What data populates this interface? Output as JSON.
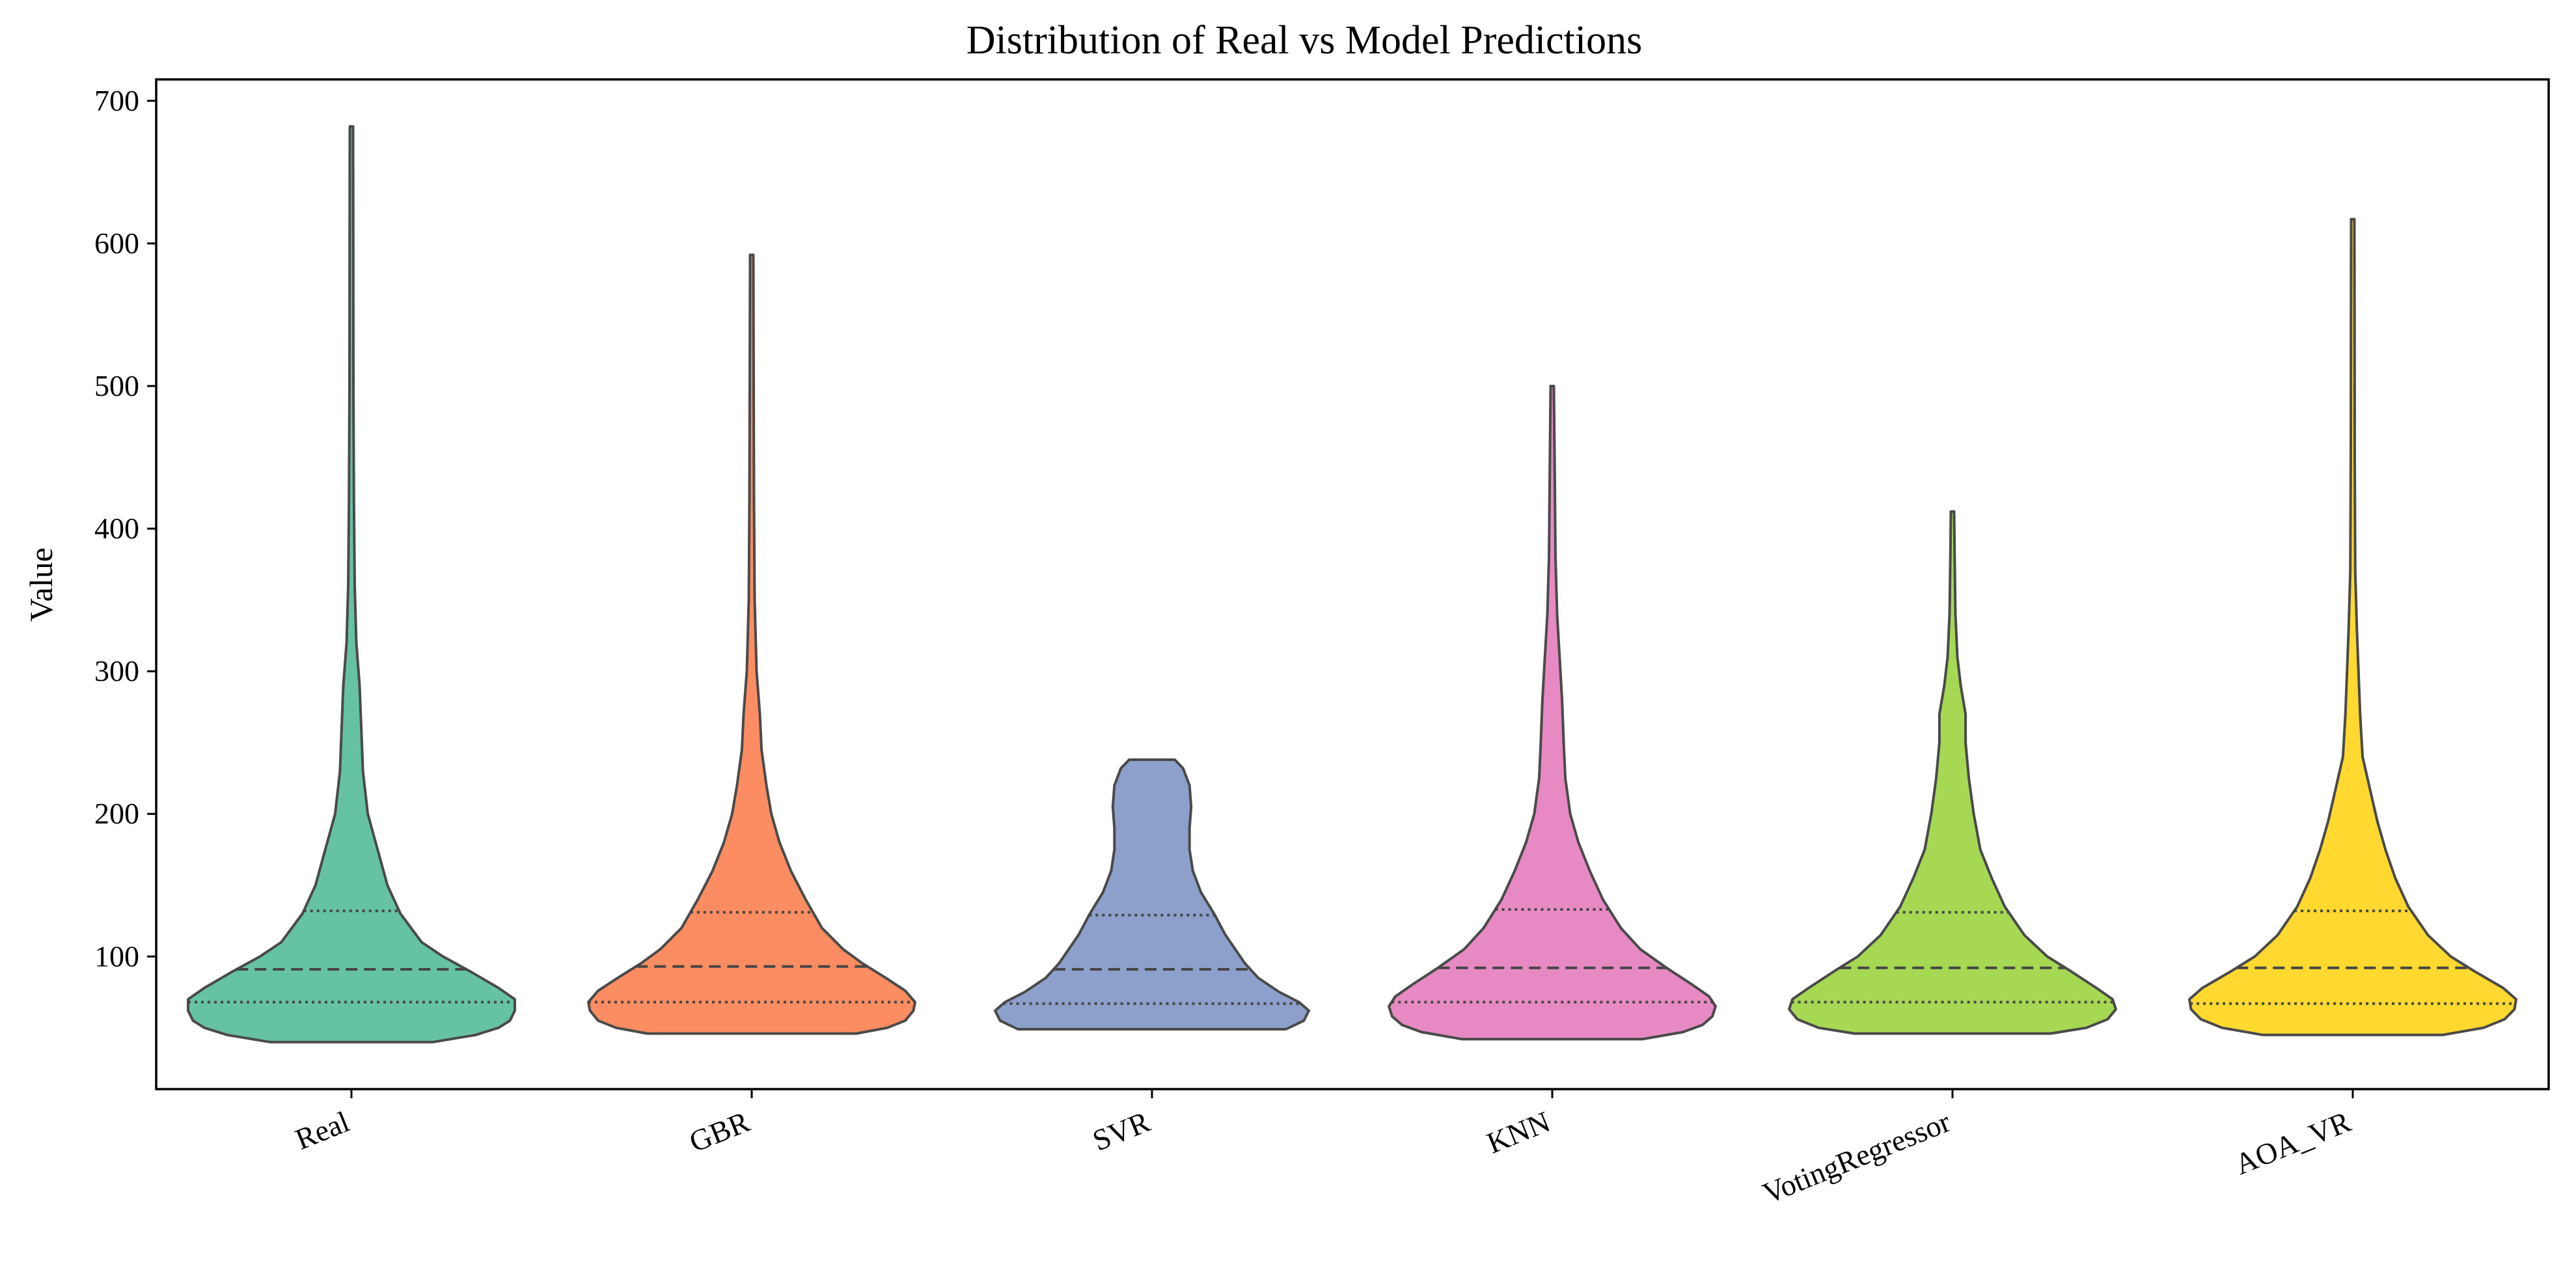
{
  "chart_data": {
    "type": "violin",
    "title": "Distribution of Real vs Model Predictions",
    "xlabel": "",
    "ylabel": "Value",
    "ylim": [
      7,
      715
    ],
    "yticks": [
      100,
      200,
      300,
      400,
      500,
      600,
      700
    ],
    "grid": false,
    "inner": "quartile",
    "categories": [
      "Real",
      "GBR",
      "SVR",
      "KNN",
      "VotingRegressor",
      "AOA_VR"
    ],
    "series": [
      {
        "name": "Real",
        "color": "#66c2a5",
        "min": 40,
        "q1": 68,
        "median": 91,
        "q3": 132,
        "max": 682,
        "density": [
          [
            40,
            0.5
          ],
          [
            45,
            0.76
          ],
          [
            50,
            0.9
          ],
          [
            55,
            0.97
          ],
          [
            62,
            1.0
          ],
          [
            70,
            1.0
          ],
          [
            78,
            0.9
          ],
          [
            90,
            0.72
          ],
          [
            100,
            0.56
          ],
          [
            110,
            0.43
          ],
          [
            130,
            0.3
          ],
          [
            150,
            0.22
          ],
          [
            175,
            0.16
          ],
          [
            200,
            0.1
          ],
          [
            230,
            0.07
          ],
          [
            260,
            0.06
          ],
          [
            290,
            0.05
          ],
          [
            320,
            0.03
          ],
          [
            360,
            0.02
          ],
          [
            420,
            0.015
          ],
          [
            500,
            0.012
          ],
          [
            600,
            0.011
          ],
          [
            682,
            0.01
          ]
        ]
      },
      {
        "name": "GBR",
        "color": "#fc8d62",
        "min": 46,
        "q1": 68,
        "median": 93,
        "q3": 131,
        "max": 592,
        "density": [
          [
            46,
            0.64
          ],
          [
            50,
            0.83
          ],
          [
            55,
            0.94
          ],
          [
            62,
            0.99
          ],
          [
            68,
            1.0
          ],
          [
            76,
            0.94
          ],
          [
            85,
            0.82
          ],
          [
            95,
            0.68
          ],
          [
            105,
            0.56
          ],
          [
            120,
            0.43
          ],
          [
            140,
            0.33
          ],
          [
            160,
            0.24
          ],
          [
            180,
            0.17
          ],
          [
            200,
            0.12
          ],
          [
            220,
            0.09
          ],
          [
            245,
            0.06
          ],
          [
            270,
            0.05
          ],
          [
            300,
            0.03
          ],
          [
            350,
            0.018
          ],
          [
            420,
            0.014
          ],
          [
            500,
            0.012
          ],
          [
            592,
            0.01
          ]
        ]
      },
      {
        "name": "SVR",
        "color": "#8da0cb",
        "min": 49,
        "q1": 67,
        "median": 91,
        "q3": 129,
        "max": 238,
        "density": [
          [
            49,
            0.82
          ],
          [
            55,
            0.93
          ],
          [
            62,
            0.96
          ],
          [
            68,
            0.9
          ],
          [
            75,
            0.78
          ],
          [
            85,
            0.65
          ],
          [
            95,
            0.57
          ],
          [
            105,
            0.51
          ],
          [
            115,
            0.45
          ],
          [
            130,
            0.38
          ],
          [
            145,
            0.3
          ],
          [
            160,
            0.25
          ],
          [
            175,
            0.23
          ],
          [
            190,
            0.23
          ],
          [
            205,
            0.24
          ],
          [
            220,
            0.23
          ],
          [
            232,
            0.19
          ],
          [
            238,
            0.14
          ]
        ]
      },
      {
        "name": "KNN",
        "color": "#e78ac3",
        "min": 42,
        "q1": 68,
        "median": 92,
        "q3": 133,
        "max": 500,
        "density": [
          [
            42,
            0.55
          ],
          [
            47,
            0.8
          ],
          [
            52,
            0.92
          ],
          [
            58,
            0.98
          ],
          [
            65,
            1.0
          ],
          [
            72,
            0.96
          ],
          [
            80,
            0.86
          ],
          [
            92,
            0.7
          ],
          [
            105,
            0.54
          ],
          [
            120,
            0.42
          ],
          [
            140,
            0.31
          ],
          [
            160,
            0.23
          ],
          [
            180,
            0.16
          ],
          [
            200,
            0.11
          ],
          [
            225,
            0.08
          ],
          [
            250,
            0.07
          ],
          [
            280,
            0.06
          ],
          [
            310,
            0.045
          ],
          [
            340,
            0.03
          ],
          [
            380,
            0.02
          ],
          [
            440,
            0.015
          ],
          [
            500,
            0.01
          ]
        ]
      },
      {
        "name": "VotingRegressor",
        "color": "#a6d854",
        "min": 46,
        "q1": 68,
        "median": 92,
        "q3": 131,
        "max": 412,
        "density": [
          [
            46,
            0.6
          ],
          [
            50,
            0.82
          ],
          [
            56,
            0.95
          ],
          [
            63,
            1.0
          ],
          [
            70,
            0.98
          ],
          [
            78,
            0.88
          ],
          [
            90,
            0.72
          ],
          [
            100,
            0.58
          ],
          [
            115,
            0.44
          ],
          [
            135,
            0.32
          ],
          [
            155,
            0.24
          ],
          [
            175,
            0.17
          ],
          [
            200,
            0.13
          ],
          [
            225,
            0.1
          ],
          [
            250,
            0.08
          ],
          [
            270,
            0.08
          ],
          [
            290,
            0.05
          ],
          [
            310,
            0.03
          ],
          [
            340,
            0.018
          ],
          [
            380,
            0.013
          ],
          [
            412,
            0.01
          ]
        ]
      },
      {
        "name": "AOA_VR",
        "color": "#ffd92f",
        "min": 45,
        "q1": 67,
        "median": 92,
        "q3": 132,
        "max": 617,
        "density": [
          [
            45,
            0.55
          ],
          [
            50,
            0.8
          ],
          [
            56,
            0.93
          ],
          [
            63,
            0.99
          ],
          [
            70,
            1.0
          ],
          [
            78,
            0.92
          ],
          [
            90,
            0.74
          ],
          [
            100,
            0.6
          ],
          [
            115,
            0.46
          ],
          [
            135,
            0.34
          ],
          [
            155,
            0.26
          ],
          [
            175,
            0.2
          ],
          [
            195,
            0.15
          ],
          [
            215,
            0.11
          ],
          [
            240,
            0.06
          ],
          [
            270,
            0.045
          ],
          [
            300,
            0.035
          ],
          [
            330,
            0.025
          ],
          [
            370,
            0.015
          ],
          [
            450,
            0.012
          ],
          [
            530,
            0.011
          ],
          [
            617,
            0.01
          ]
        ]
      }
    ]
  }
}
